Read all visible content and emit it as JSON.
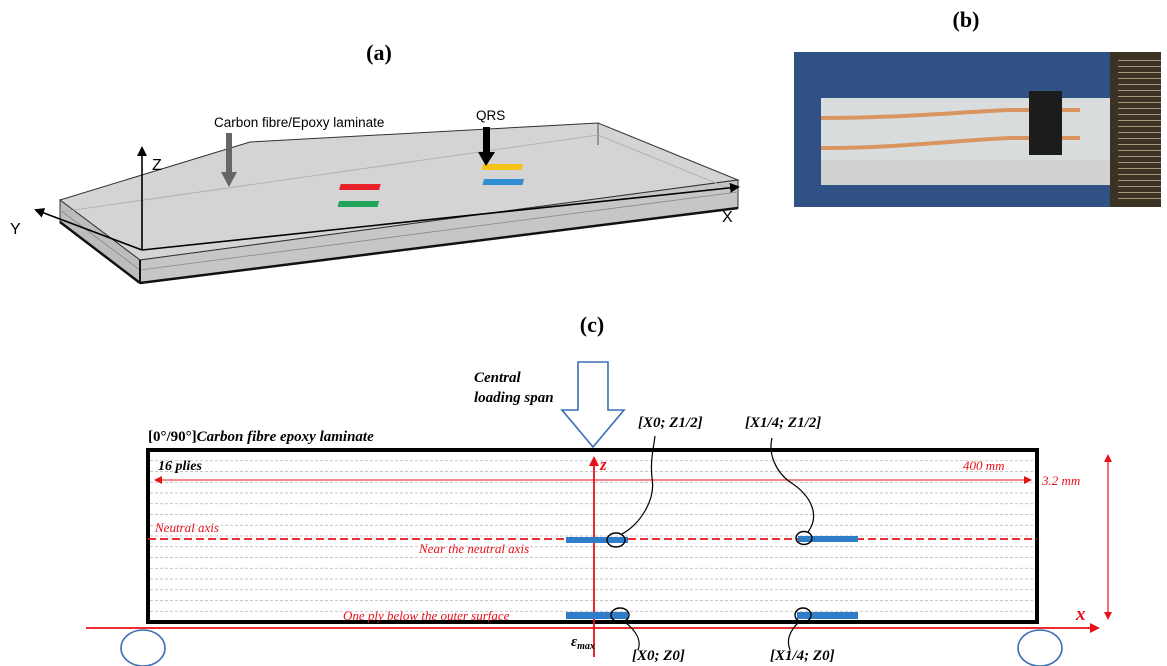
{
  "panels": {
    "a": {
      "label": "(a)",
      "laminate_label": "Carbon fibre/Epoxy laminate",
      "sensor_label": "QRS",
      "axis_z": "Z",
      "axis_y": "Y",
      "axis_x": "X",
      "colors": {
        "red_strip": "#e8202a",
        "green_strip": "#1fa55a",
        "yellow_strip": "#f5c316",
        "blue_strip": "#2f8fd0",
        "laminate_top": "#d2d2d2",
        "laminate_side": "#c4c4c4"
      }
    },
    "b": {
      "label": "(b)",
      "colors": {
        "background": "#2a4a7c",
        "specimen": "#d9dcdc",
        "sensor": "#1c1c1c",
        "wire": "#d9955f",
        "ruler": "#3c3224"
      }
    },
    "c": {
      "label": "(c)",
      "load_label_line1": "Central",
      "load_label_line2": "loading span",
      "laminate_title_bold": "[0°/90°]",
      "laminate_title_italic": "Carbon fibre epoxy laminate",
      "plies": "16 plies",
      "length": "400 mm",
      "thickness": "3.2 mm",
      "axis_z": "z",
      "axis_x": "x",
      "neutral_axis": "Neutral axis",
      "near_neutral": "Near the neutral axis",
      "below_surface": "One ply below the outer surface",
      "epsilon": "ε",
      "epsilon_sub": "max",
      "sensors": {
        "x0_z_half": "[X0; Z1/2]",
        "x_quarter_z_half": "[X1/4; Z1/2]",
        "x0_z0": "[X0; Z0]",
        "x_quarter_z0": "[X1/4; Z0]"
      },
      "colors": {
        "annotation": "#e8101a",
        "sensor": "#2f7dc8",
        "arrow": "#3c6eb4",
        "ply_lines": "#b4b4b4"
      }
    }
  }
}
